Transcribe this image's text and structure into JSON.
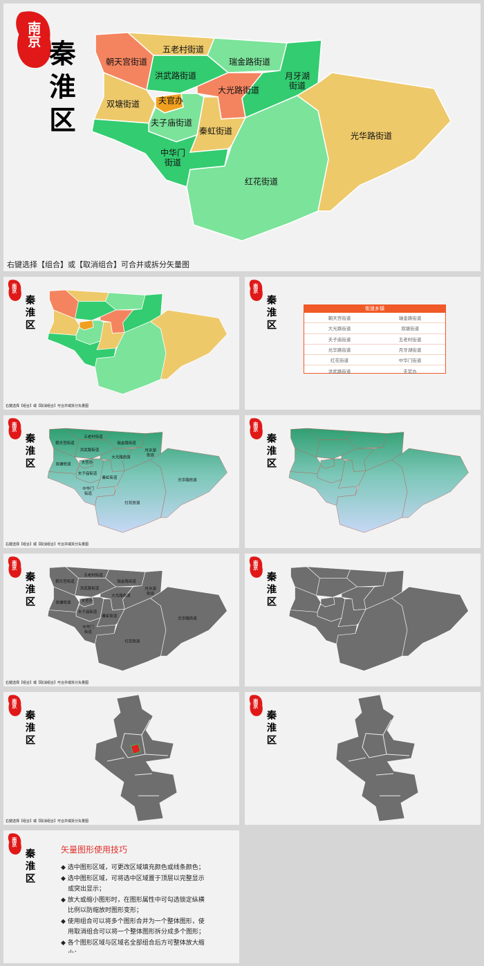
{
  "seal": "南京",
  "district": "秦淮区",
  "footer": "右键选择【组合】或【取消组合】可合并或拆分矢量图",
  "districts": [
    {
      "name": "朝天宫街道",
      "color": "#f4845f"
    },
    {
      "name": "五老村街道",
      "color": "#eec96a"
    },
    {
      "name": "瑞金路街道",
      "color": "#7be39a"
    },
    {
      "name": "月牙湖\n街道",
      "color": "#33cc70"
    },
    {
      "name": "洪武路街道",
      "color": "#33cc70"
    },
    {
      "name": "大光路街道",
      "color": "#f4845f"
    },
    {
      "name": "双塘街道",
      "color": "#eec96a"
    },
    {
      "name": "夫官办",
      "color": "#f0a020"
    },
    {
      "name": "夫子庙街道",
      "color": "#7be39a"
    },
    {
      "name": "秦虹街道",
      "color": "#eec96a"
    },
    {
      "name": "中华门\n街道",
      "color": "#33cc70"
    },
    {
      "name": "红花街道",
      "color": "#7be39a"
    },
    {
      "name": "光华路街道",
      "color": "#eec96a"
    }
  ],
  "table": {
    "title": "街道乡镇",
    "rows": [
      [
        "朝天宫街道",
        "瑞金路街道"
      ],
      [
        "大光路街道",
        "双塘街道"
      ],
      [
        "夫子庙街道",
        "五老村街道"
      ],
      [
        "光华路街道",
        "月牙湖街道"
      ],
      [
        "红花街道",
        "中华门街道"
      ],
      [
        "洪武路街道",
        "夫官办"
      ],
      [
        "秦虹街道"
      ]
    ]
  },
  "tips": {
    "title": "矢量图形使用技巧",
    "items": [
      "选中图形区域，可更改区域填充颜色或线条颜色；",
      "选中图形区域，可将选中区域置于顶层以完整显示或突出显示；",
      "放大或缩小图形时，在图形属性中可勾选锁定纵横比例以防缩放时图形变形；",
      "使用组合可以将多个图形合并为一个整体图形，使用取消组合可以将一个整体图形拆分成多个图形；",
      "各个图形区域与区域名全部组合后方可整体放大缩小；"
    ]
  }
}
